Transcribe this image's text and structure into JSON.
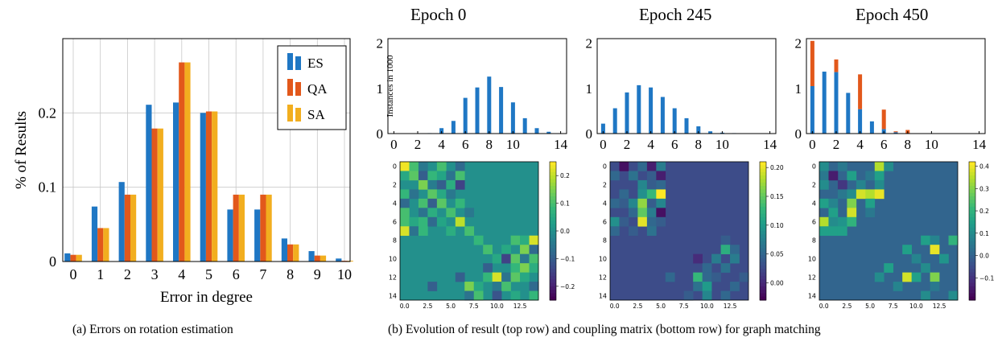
{
  "colors": {
    "ES": "#1f77c4",
    "QA": "#e2581b",
    "SA": "#f2ae1f",
    "hist_blue": "#1f77c4",
    "hist_orange": "#e2581b"
  },
  "captions": {
    "a": "(a) Errors on rotation estimation",
    "b": "(b) Evolution of result (top row) and coupling matrix (bottom row) for graph matching"
  },
  "chart_data": [
    {
      "type": "bar",
      "panel": "a",
      "xlabel": "Error in degree",
      "ylabel": "% of Results",
      "categories": [
        "0",
        "1",
        "2",
        "3",
        "4",
        "5",
        "6",
        "7",
        "8",
        "9",
        "10"
      ],
      "ylim": [
        0,
        0.3
      ],
      "yticks": [
        0,
        0.1,
        0.2
      ],
      "ytick_labels": [
        "0",
        "0.1",
        "0.2"
      ],
      "grid": true,
      "legend": "top-right",
      "series": [
        {
          "name": "ES",
          "values": [
            0.011,
            0.074,
            0.107,
            0.211,
            0.214,
            0.2,
            0.07,
            0.07,
            0.031,
            0.014,
            0.004
          ]
        },
        {
          "name": "QA",
          "values": [
            0.009,
            0.045,
            0.09,
            0.179,
            0.268,
            0.202,
            0.09,
            0.09,
            0.023,
            0.008,
            0.001
          ]
        },
        {
          "name": "SA",
          "values": [
            0.009,
            0.045,
            0.09,
            0.179,
            0.268,
            0.202,
            0.09,
            0.09,
            0.023,
            0.008,
            0.001
          ]
        }
      ]
    },
    {
      "type": "bar",
      "panel": "b-top",
      "title": "Epoch 0",
      "ylabel": "Instances in 1000",
      "xlim": [
        -0.5,
        14.5
      ],
      "ylim": [
        0,
        2.1
      ],
      "xticks": [
        0,
        2,
        4,
        6,
        8,
        10,
        14
      ],
      "yticks": [
        0,
        1,
        2
      ],
      "x": [
        0,
        1,
        2,
        3,
        4,
        5,
        6,
        7,
        8,
        9,
        10,
        11,
        12,
        13,
        14
      ],
      "values": [
        0,
        0,
        0,
        0.01,
        0.12,
        0.28,
        0.79,
        1.02,
        1.26,
        1.03,
        0.69,
        0.34,
        0.12,
        0.04,
        0
      ],
      "stack": [
        0,
        0,
        0,
        0,
        0,
        0,
        0,
        0,
        0,
        0,
        0,
        0,
        0,
        0,
        0
      ]
    },
    {
      "type": "bar",
      "panel": "b-top",
      "title": "Epoch 245",
      "xlim": [
        -0.5,
        14.5
      ],
      "ylim": [
        0,
        2.1
      ],
      "xticks": [
        0,
        2,
        4,
        6,
        8,
        10,
        14
      ],
      "yticks": [
        0,
        1,
        2
      ],
      "x": [
        0,
        1,
        2,
        3,
        4,
        5,
        6,
        7,
        8,
        9,
        10,
        11,
        12,
        13,
        14
      ],
      "values": [
        0.22,
        0.56,
        0.91,
        1.07,
        1.02,
        0.81,
        0.56,
        0.34,
        0.16,
        0.05,
        0.02,
        0.01,
        0,
        0,
        0
      ],
      "stack": [
        0,
        0,
        0,
        0,
        0,
        0,
        0,
        0,
        0,
        0,
        0,
        0,
        0,
        0,
        0
      ]
    },
    {
      "type": "bar",
      "panel": "b-top",
      "title": "Epoch 450",
      "xlim": [
        -0.5,
        14.5
      ],
      "ylim": [
        0,
        2.1
      ],
      "xticks": [
        0,
        2,
        4,
        6,
        8,
        10,
        14
      ],
      "yticks": [
        0,
        1,
        2
      ],
      "x": [
        0,
        1,
        2,
        3,
        4,
        5,
        6,
        7,
        8,
        9,
        10,
        11,
        12,
        13,
        14
      ],
      "values": [
        1.05,
        1.37,
        1.36,
        0.9,
        0.54,
        0.27,
        0.1,
        0.03,
        0,
        0,
        0,
        0,
        0,
        0,
        0
      ],
      "stack": [
        1.0,
        0,
        0.28,
        0,
        0.77,
        0,
        0.43,
        0.02,
        0.08,
        0,
        0,
        0,
        0,
        0,
        0
      ]
    },
    {
      "type": "heatmap",
      "panel": "b-bottom",
      "size": 15,
      "xticks": [
        "0.0",
        "2.5",
        "5.0",
        "7.5",
        "10.0",
        "12.5"
      ],
      "yticks": [
        "0",
        "2",
        "4",
        "6",
        "8",
        "10",
        "12",
        "14"
      ],
      "colorbar_ticks": [
        0.2,
        0.1,
        0.0,
        -0.1,
        -0.2
      ],
      "colorbar_labels": [
        "0.2",
        "0.1",
        "0.0",
        "−0.1",
        "−0.2"
      ],
      "vmin": -0.25,
      "vmax": 0.25,
      "background": 0.0,
      "cells": [
        [
          0,
          0,
          0.24
        ],
        [
          0,
          1,
          0.1
        ],
        [
          0,
          2,
          -0.05
        ],
        [
          0,
          4,
          0.1
        ],
        [
          0,
          6,
          -0.08
        ],
        [
          1,
          0,
          0.05
        ],
        [
          1,
          1,
          0.12
        ],
        [
          1,
          2,
          -0.1
        ],
        [
          1,
          3,
          0.08
        ],
        [
          1,
          4,
          0.04
        ],
        [
          1,
          5,
          -0.06
        ],
        [
          1,
          6,
          0.1
        ],
        [
          2,
          2,
          0.15
        ],
        [
          2,
          3,
          -0.04
        ],
        [
          2,
          4,
          -0.1
        ],
        [
          2,
          5,
          0.06
        ],
        [
          2,
          6,
          -0.15
        ],
        [
          3,
          0,
          0.08
        ],
        [
          3,
          1,
          -0.06
        ],
        [
          3,
          3,
          0.12
        ],
        [
          3,
          4,
          0.05
        ],
        [
          3,
          5,
          -0.05
        ],
        [
          4,
          0,
          -0.08
        ],
        [
          4,
          2,
          0.1
        ],
        [
          4,
          3,
          -0.1
        ],
        [
          4,
          4,
          0.12
        ],
        [
          4,
          6,
          0.08
        ],
        [
          5,
          0,
          0.1
        ],
        [
          5,
          2,
          -0.06
        ],
        [
          5,
          3,
          0.06
        ],
        [
          5,
          5,
          0.1
        ],
        [
          5,
          7,
          -0.05
        ],
        [
          6,
          0,
          0.1
        ],
        [
          6,
          1,
          0.05
        ],
        [
          6,
          2,
          0.08
        ],
        [
          6,
          3,
          -0.08
        ],
        [
          6,
          4,
          0.04
        ],
        [
          6,
          6,
          0.2
        ],
        [
          7,
          0,
          0.22
        ],
        [
          7,
          1,
          -0.06
        ],
        [
          7,
          2,
          0.08
        ],
        [
          7,
          5,
          0.06
        ],
        [
          7,
          7,
          0.1
        ],
        [
          8,
          8,
          0.08
        ],
        [
          8,
          12,
          0.1
        ],
        [
          8,
          13,
          0.06
        ],
        [
          8,
          14,
          0.22
        ],
        [
          9,
          9,
          0.1
        ],
        [
          9,
          11,
          0.05
        ],
        [
          9,
          13,
          0.15
        ],
        [
          9,
          14,
          -0.08
        ],
        [
          10,
          10,
          0.05
        ],
        [
          10,
          11,
          -0.15
        ],
        [
          10,
          12,
          0.12
        ],
        [
          10,
          13,
          -0.05
        ],
        [
          10,
          14,
          0.1
        ],
        [
          11,
          9,
          -0.1
        ],
        [
          11,
          12,
          0.08
        ],
        [
          11,
          13,
          0.15
        ],
        [
          11,
          14,
          0.06
        ],
        [
          12,
          6,
          -0.1
        ],
        [
          12,
          9,
          0.08
        ],
        [
          12,
          10,
          0.22
        ],
        [
          12,
          11,
          -0.06
        ],
        [
          12,
          12,
          0.12
        ],
        [
          12,
          13,
          0.05
        ],
        [
          13,
          3,
          -0.1
        ],
        [
          13,
          7,
          0.15
        ],
        [
          13,
          8,
          0.05
        ],
        [
          13,
          10,
          -0.05
        ],
        [
          13,
          11,
          0.1
        ],
        [
          13,
          14,
          -0.08
        ],
        [
          14,
          7,
          -0.06
        ],
        [
          14,
          8,
          0.1
        ],
        [
          14,
          10,
          -0.12
        ],
        [
          14,
          12,
          0.05
        ],
        [
          14,
          14,
          0.08
        ]
      ]
    },
    {
      "type": "heatmap",
      "panel": "b-bottom",
      "size": 15,
      "xticks": [
        "0.0",
        "2.5",
        "5.0",
        "7.5",
        "10.0",
        "12.5"
      ],
      "yticks": [
        "0",
        "2",
        "4",
        "6",
        "8",
        "10",
        "12",
        "14"
      ],
      "colorbar_ticks": [
        0.2,
        0.15,
        0.1,
        0.05,
        0.0
      ],
      "colorbar_labels": [
        "0.20",
        "0.15",
        "0.10",
        "0.05",
        "0.00"
      ],
      "vmin": -0.03,
      "vmax": 0.21,
      "background": 0.025,
      "cells": [
        [
          0,
          1,
          -0.02
        ],
        [
          0,
          3,
          0.05
        ],
        [
          0,
          4,
          -0.01
        ],
        [
          0,
          5,
          0.07
        ],
        [
          1,
          0,
          0.05
        ],
        [
          1,
          2,
          0.06
        ],
        [
          1,
          4,
          0.04
        ],
        [
          1,
          5,
          -0.01
        ],
        [
          2,
          3,
          0.08
        ],
        [
          2,
          4,
          0.04
        ],
        [
          2,
          5,
          0.05
        ],
        [
          3,
          1,
          0.05
        ],
        [
          3,
          3,
          0.09
        ],
        [
          3,
          4,
          0.13
        ],
        [
          3,
          5,
          0.21
        ],
        [
          4,
          0,
          0.05
        ],
        [
          4,
          1,
          0.04
        ],
        [
          4,
          2,
          0.08
        ],
        [
          4,
          3,
          0.17
        ],
        [
          4,
          4,
          0.04
        ],
        [
          4,
          5,
          0.08
        ],
        [
          5,
          2,
          0.05
        ],
        [
          5,
          3,
          0.15
        ],
        [
          5,
          4,
          0.07
        ],
        [
          5,
          5,
          -0.02
        ],
        [
          6,
          0,
          0.09
        ],
        [
          6,
          1,
          0.04
        ],
        [
          6,
          3,
          0.2
        ],
        [
          6,
          4,
          0.05
        ],
        [
          6,
          5,
          0.04
        ],
        [
          7,
          0,
          0.05
        ],
        [
          7,
          2,
          0.04
        ],
        [
          7,
          4,
          0.06
        ],
        [
          8,
          12,
          0.04
        ],
        [
          9,
          12,
          0.12
        ],
        [
          9,
          13,
          0.05
        ],
        [
          10,
          9,
          0.0
        ],
        [
          10,
          11,
          0.07
        ],
        [
          10,
          13,
          0.07
        ],
        [
          11,
          10,
          0.05
        ],
        [
          11,
          12,
          0.06
        ],
        [
          12,
          6,
          0.05
        ],
        [
          12,
          9,
          0.13
        ],
        [
          12,
          10,
          0.05
        ],
        [
          12,
          11,
          0.04
        ],
        [
          12,
          14,
          0.04
        ],
        [
          13,
          9,
          0.06
        ],
        [
          13,
          10,
          0.1
        ],
        [
          13,
          13,
          0.05
        ],
        [
          14,
          8,
          0.04
        ],
        [
          14,
          10,
          0.08
        ],
        [
          14,
          12,
          0.05
        ]
      ]
    },
    {
      "type": "heatmap",
      "panel": "b-bottom",
      "size": 15,
      "xticks": [
        "0.0",
        "2.5",
        "5.0",
        "7.5",
        "10.0",
        "12.5"
      ],
      "yticks": [
        "0",
        "2",
        "4",
        "6",
        "8",
        "10",
        "12",
        "14"
      ],
      "colorbar_ticks": [
        0.4,
        0.3,
        0.2,
        0.1,
        0.0,
        -0.1
      ],
      "colorbar_labels": [
        "0.4",
        "0.3",
        "0.2",
        "0.1",
        "0.0",
        "−0.1"
      ],
      "vmin": -0.2,
      "vmax": 0.42,
      "background": 0.0,
      "cells": [
        [
          0,
          0,
          0.1
        ],
        [
          0,
          2,
          0.05
        ],
        [
          0,
          6,
          0.35
        ],
        [
          0,
          7,
          0.1
        ],
        [
          1,
          0,
          0.05
        ],
        [
          1,
          1,
          -0.15
        ],
        [
          1,
          3,
          0.15
        ],
        [
          1,
          5,
          0.05
        ],
        [
          1,
          6,
          0.15
        ],
        [
          2,
          0,
          0.1
        ],
        [
          2,
          2,
          -0.1
        ],
        [
          2,
          4,
          0.08
        ],
        [
          2,
          6,
          0.1
        ],
        [
          3,
          2,
          0.05
        ],
        [
          3,
          3,
          0.1
        ],
        [
          3,
          4,
          0.38
        ],
        [
          3,
          5,
          0.35
        ],
        [
          3,
          6,
          0.4
        ],
        [
          4,
          0,
          0.15
        ],
        [
          4,
          1,
          0.08
        ],
        [
          4,
          3,
          0.3
        ],
        [
          4,
          5,
          0.15
        ],
        [
          5,
          1,
          0.15
        ],
        [
          5,
          3,
          0.38
        ],
        [
          5,
          5,
          0.05
        ],
        [
          6,
          0,
          0.35
        ],
        [
          6,
          1,
          0.1
        ],
        [
          6,
          2,
          0.12
        ],
        [
          6,
          3,
          0.2
        ],
        [
          7,
          0,
          0.15
        ],
        [
          7,
          1,
          0.15
        ],
        [
          7,
          2,
          0.15
        ],
        [
          8,
          11,
          0.15
        ],
        [
          8,
          12,
          0.08
        ],
        [
          8,
          14,
          0.2
        ],
        [
          9,
          9,
          0.15
        ],
        [
          9,
          12,
          0.4
        ],
        [
          10,
          10,
          0.08
        ],
        [
          10,
          13,
          0.12
        ],
        [
          11,
          7,
          0.15
        ],
        [
          11,
          11,
          0.1
        ],
        [
          12,
          6,
          0.1
        ],
        [
          12,
          9,
          0.38
        ],
        [
          12,
          10,
          0.15
        ],
        [
          12,
          12,
          0.3
        ],
        [
          13,
          8,
          0.08
        ],
        [
          13,
          12,
          0.05
        ],
        [
          14,
          11,
          0.1
        ],
        [
          14,
          14,
          0.1
        ]
      ]
    }
  ],
  "panel_b_titles": [
    "Epoch 0",
    "Epoch 245",
    "Epoch 450"
  ]
}
